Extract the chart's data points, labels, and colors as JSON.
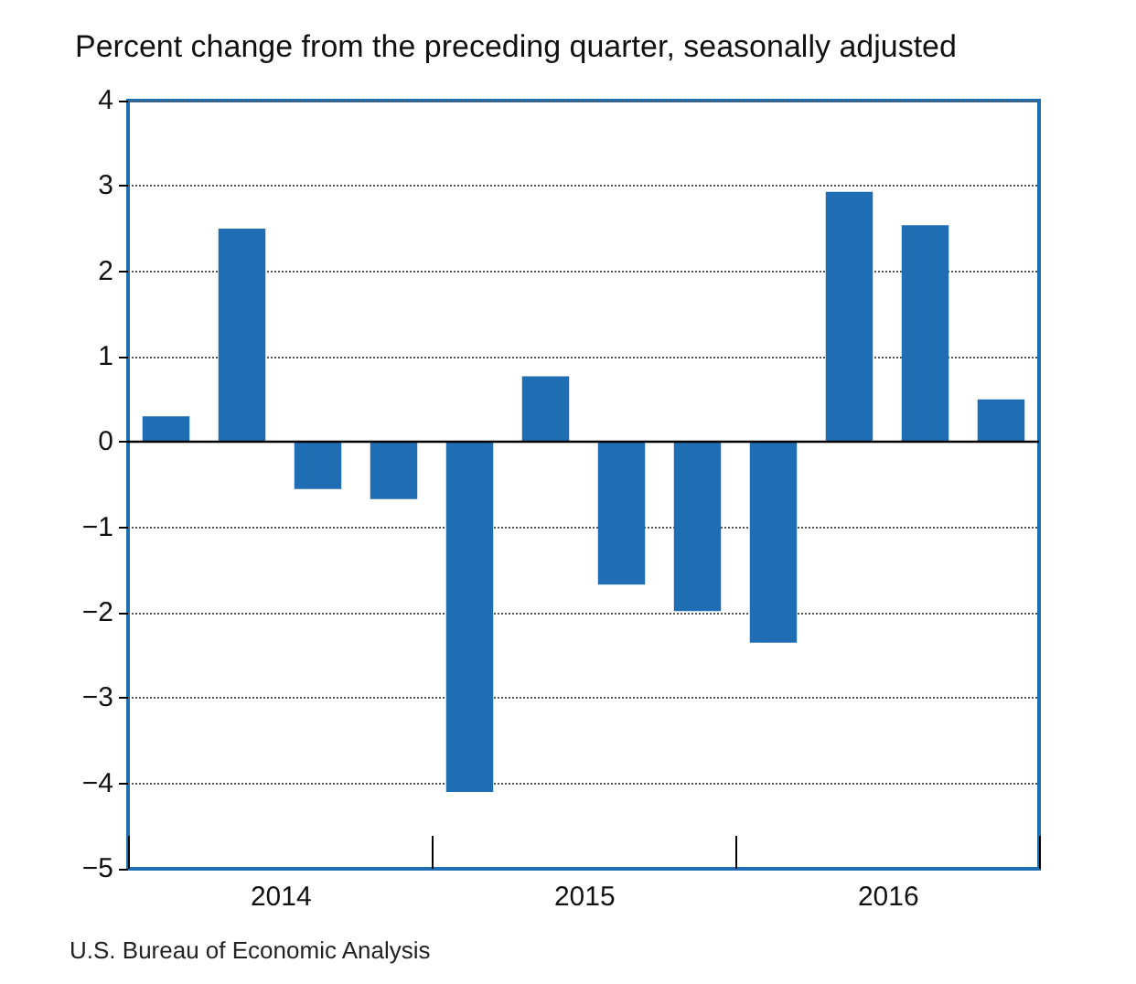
{
  "chart_data": {
    "type": "bar",
    "title": "Percent change from the preceding quarter, seasonally adjusted",
    "categories": [
      null,
      "2014",
      null,
      null,
      null,
      "2015",
      null,
      null,
      null,
      "2016",
      null,
      null
    ],
    "values": [
      0.3,
      2.5,
      -0.55,
      -0.67,
      -4.1,
      0.77,
      -1.67,
      -1.98,
      -2.35,
      2.93,
      2.54,
      0.5
    ],
    "color": "#1f6db2",
    "ref_lines": [
      {
        "axis": "y",
        "value": 0,
        "color": "#000000"
      }
    ],
    "ylim": [
      -5,
      4
    ],
    "yticks": [
      -5,
      -4,
      -3,
      -2,
      -1,
      0,
      1,
      2,
      3,
      4
    ],
    "grid": "y",
    "annotations": [
      "U.S. Bureau of Economic Analysis"
    ]
  }
}
